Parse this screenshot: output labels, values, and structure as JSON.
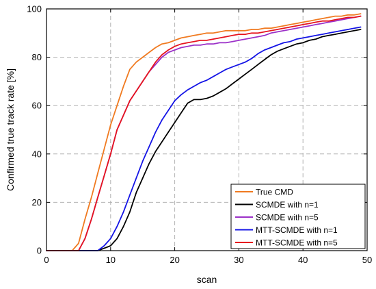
{
  "chart_data": {
    "type": "line",
    "title": "",
    "xlabel": "scan",
    "ylabel": "Confirmed true track rate [%]",
    "xlim": [
      0,
      50
    ],
    "ylim": [
      0,
      100
    ],
    "xticks": [
      0,
      10,
      20,
      30,
      40,
      50
    ],
    "yticks": [
      0,
      20,
      40,
      60,
      80,
      100
    ],
    "grid": true,
    "legend_position": "bottom-right",
    "series": [
      {
        "name": "True CMD",
        "color": "#f07a20",
        "x": [
          0,
          4,
          5,
          6,
          7,
          8,
          9,
          10,
          11,
          12,
          13,
          14,
          15,
          16,
          17,
          18,
          19,
          20,
          21,
          22,
          23,
          24,
          25,
          26,
          27,
          28,
          29,
          30,
          31,
          32,
          33,
          34,
          35,
          36,
          37,
          38,
          39,
          40,
          41,
          42,
          43,
          44,
          45,
          46,
          47,
          48,
          49
        ],
        "y": [
          0,
          0,
          3,
          13,
          22,
          32,
          42,
          52,
          60,
          68,
          75,
          78,
          80,
          82,
          84,
          85.5,
          86,
          87,
          88,
          88.5,
          89,
          89.5,
          90,
          90,
          90.5,
          91,
          91,
          91,
          91,
          91.5,
          91.5,
          92,
          92,
          92.5,
          93,
          93.5,
          94,
          94.5,
          95,
          95.5,
          96,
          96.5,
          97,
          97,
          97.5,
          97.5,
          98
        ]
      },
      {
        "name": "SCMDE with n=1",
        "color": "#000000",
        "x": [
          0,
          8,
          9,
          10,
          11,
          12,
          13,
          14,
          15,
          16,
          17,
          18,
          19,
          20,
          21,
          22,
          23,
          24,
          25,
          26,
          27,
          28,
          29,
          30,
          31,
          32,
          33,
          34,
          35,
          36,
          37,
          38,
          39,
          40,
          41,
          42,
          43,
          44,
          45,
          46,
          47,
          48,
          49
        ],
        "y": [
          0,
          0,
          1,
          2,
          5,
          10,
          16,
          24,
          30,
          36,
          41,
          45,
          49,
          53,
          57,
          61,
          62.5,
          62.5,
          63,
          64,
          65.5,
          67,
          69,
          71,
          73,
          75,
          77,
          79,
          81,
          82.5,
          83.5,
          84.5,
          85.5,
          86,
          87,
          87.5,
          88.5,
          89,
          89.5,
          90,
          90.5,
          91,
          91.5
        ]
      },
      {
        "name": "SCMDE with n=5",
        "color": "#9b30c8",
        "x": [
          0,
          5,
          6,
          7,
          8,
          9,
          10,
          11,
          12,
          13,
          14,
          15,
          16,
          17,
          18,
          19,
          20,
          21,
          22,
          23,
          24,
          25,
          26,
          27,
          28,
          29,
          30,
          31,
          32,
          33,
          34,
          35,
          36,
          37,
          38,
          39,
          40,
          41,
          42,
          43,
          44,
          45,
          46,
          47,
          48,
          49
        ],
        "y": [
          0,
          0,
          5,
          13,
          22,
          31,
          40,
          50,
          56,
          62,
          66,
          70,
          74,
          77,
          80,
          82,
          83,
          84,
          84.5,
          85,
          85,
          85.5,
          85.5,
          86,
          86,
          86.5,
          87,
          87.5,
          88,
          88.5,
          89,
          90,
          90.5,
          91,
          91.5,
          92,
          92.5,
          93,
          93.5,
          94,
          94.5,
          95,
          95.5,
          96,
          96.5,
          97
        ]
      },
      {
        "name": "MTT-SCMDE with n=1",
        "color": "#1414e6",
        "x": [
          0,
          8,
          9,
          10,
          11,
          12,
          13,
          14,
          15,
          16,
          17,
          18,
          19,
          20,
          21,
          22,
          23,
          24,
          25,
          26,
          27,
          28,
          29,
          30,
          31,
          32,
          33,
          34,
          35,
          36,
          37,
          38,
          39,
          40,
          41,
          42,
          43,
          44,
          45,
          46,
          47,
          48,
          49
        ],
        "y": [
          0,
          0,
          2,
          5,
          10,
          16,
          23,
          30,
          37,
          43,
          49,
          54,
          58,
          62,
          64.5,
          66.5,
          68,
          69.5,
          70.5,
          72,
          73.5,
          75,
          76,
          77,
          78,
          79.5,
          81.5,
          83,
          84,
          85,
          86,
          86.5,
          87.5,
          88,
          88.5,
          89,
          89.5,
          90,
          90.5,
          91,
          91.5,
          92,
          92.5
        ]
      },
      {
        "name": "MTT-SCMDE with n=5",
        "color": "#e6141e",
        "x": [
          0,
          5,
          6,
          7,
          8,
          9,
          10,
          11,
          12,
          13,
          14,
          15,
          16,
          17,
          18,
          19,
          20,
          21,
          22,
          23,
          24,
          25,
          26,
          27,
          28,
          29,
          30,
          31,
          32,
          33,
          34,
          35,
          36,
          37,
          38,
          39,
          40,
          41,
          42,
          43,
          44,
          45,
          46,
          47,
          48,
          49
        ],
        "y": [
          0,
          0,
          5,
          13,
          22,
          31,
          40,
          50,
          56,
          62,
          66,
          70,
          74,
          78,
          81,
          83,
          84.5,
          85.5,
          86,
          86.5,
          87,
          87,
          87.5,
          88,
          88.5,
          89,
          89.5,
          89.5,
          90,
          90,
          90.5,
          91,
          91.5,
          92,
          92.5,
          93,
          93.5,
          94,
          94.5,
          95,
          95,
          95.5,
          96,
          96.5,
          96.5,
          97
        ]
      }
    ]
  }
}
